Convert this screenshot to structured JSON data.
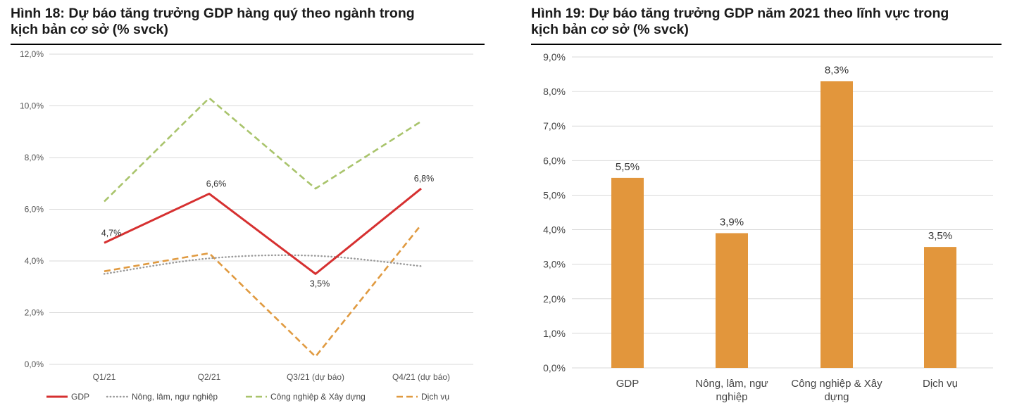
{
  "figure18": {
    "title_line1": "Hình 18: Dự báo tăng trưởng GDP hàng quý theo ngành trong",
    "title_line2": "kịch bản cơ sở (% svck)"
  },
  "figure19": {
    "title_line1": "Hình 19:  Dự báo tăng trưởng GDP năm 2021 theo lĩnh vực trong",
    "title_line2": "kịch bản cơ sở (% svck)"
  },
  "colors": {
    "gdp": "#d63030",
    "agri": "#999999",
    "industry": "#a9c46c",
    "services": "#e09a40",
    "bar": "#e2963c",
    "rule": "#000000"
  },
  "chart_data": [
    {
      "type": "line",
      "title": "Hình 18: Dự báo tăng trưởng GDP hàng quý theo ngành trong kịch bản cơ sở (% svck)",
      "categories": [
        "Q1/21",
        "Q2/21",
        "Q3/21 (dự báo)",
        "Q4/21 (dự báo)"
      ],
      "ylim": [
        0,
        12
      ],
      "yticks": [
        "0,0%",
        "2,0%",
        "4,0%",
        "6,0%",
        "8,0%",
        "10,0%",
        "12,0%"
      ],
      "grid": true,
      "legend_position": "bottom",
      "series": [
        {
          "name": "GDP",
          "values": [
            4.7,
            6.6,
            3.5,
            6.8
          ],
          "style": "solid",
          "color_key": "gdp",
          "labels": [
            "4,7%",
            "6,6%",
            "3,5%",
            "6,8%"
          ]
        },
        {
          "name": "Nông, lâm, ngư nghiệp",
          "values": [
            3.5,
            4.1,
            4.2,
            3.8
          ],
          "style": "dotted",
          "color_key": "agri"
        },
        {
          "name": "Công nghiệp & Xây dựng",
          "values": [
            6.3,
            10.3,
            6.8,
            9.4
          ],
          "style": "dashed",
          "color_key": "industry"
        },
        {
          "name": "Dịch vụ",
          "values": [
            3.6,
            4.3,
            0.3,
            5.4
          ],
          "style": "dashed",
          "color_key": "services"
        }
      ]
    },
    {
      "type": "bar",
      "title": "Hình 19: Dự báo tăng trưởng GDP năm 2021 theo lĩnh vực trong kịch bản cơ sở (% svck)",
      "categories": [
        "GDP",
        "Nông, lâm, ngư nghiệp",
        "Công nghiệp & Xây dựng",
        "Dịch vụ"
      ],
      "category_lines": [
        [
          "GDP"
        ],
        [
          "Nông, lâm, ngư",
          "nghiệp"
        ],
        [
          "Công nghiệp & Xây",
          "dựng"
        ],
        [
          "Dịch vụ"
        ]
      ],
      "values": [
        5.5,
        3.9,
        8.3,
        3.5
      ],
      "labels": [
        "5,5%",
        "3,9%",
        "8,3%",
        "3,5%"
      ],
      "ylim": [
        0,
        9
      ],
      "yticks": [
        "0,0%",
        "1,0%",
        "2,0%",
        "3,0%",
        "4,0%",
        "5,0%",
        "6,0%",
        "7,0%",
        "8,0%",
        "9,0%"
      ],
      "grid": true
    }
  ]
}
